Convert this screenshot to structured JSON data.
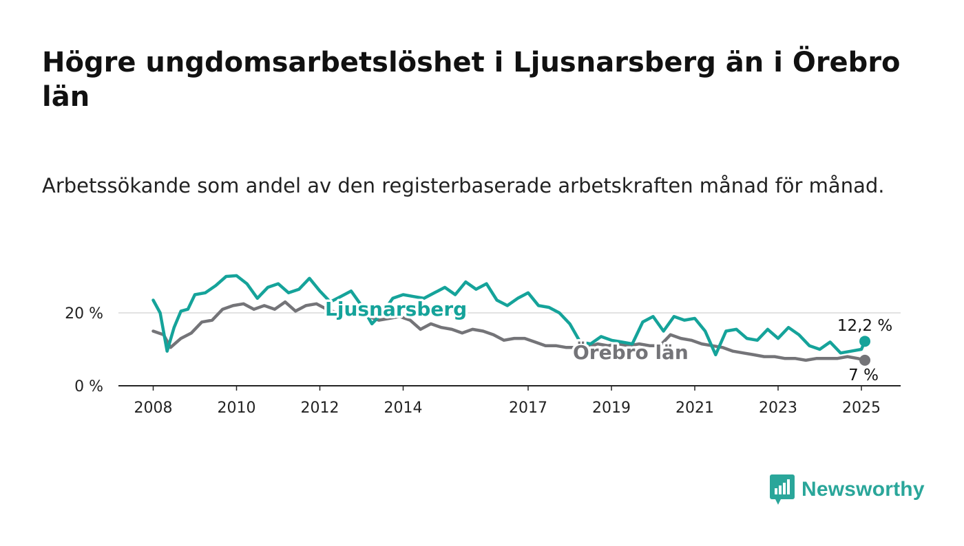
{
  "title": "Högre ungdomsarbetslöshet i Ljusnarsberg än i Örebro län",
  "subtitle": "Arbetssökande som andel av den registerbaserade arbetskraften månad för månad.",
  "brand": {
    "name": "Newsworthy",
    "icon": "newsworthy-logo-icon"
  },
  "colors": {
    "ljusnarsberg": "#15a39a",
    "orebro": "#747478",
    "grid": "#d8d8d8",
    "axis": "#222222"
  },
  "chart_data": {
    "type": "line",
    "title": "Högre ungdomsarbetslöshet i Ljusnarsberg än i Örebro län",
    "subtitle": "Arbetssökande som andel av den registerbaserade arbetskraften månad för månad.",
    "xlabel": "",
    "ylabel": "",
    "x_ticks": [
      "2008",
      "2010",
      "2012",
      "2014",
      "2017",
      "2019",
      "2021",
      "2023",
      "2025"
    ],
    "y_ticks": [
      "0 %",
      "20 %"
    ],
    "ylim": [
      0,
      32
    ],
    "grid": "horizontal",
    "series": [
      {
        "name": "Ljusnarsberg",
        "color": "#15a39a",
        "end_label": "12,2 %",
        "points": [
          [
            "2008-01",
            23.5
          ],
          [
            "2008-03",
            20.0
          ],
          [
            "2008-05",
            9.5
          ],
          [
            "2008-07",
            16.0
          ],
          [
            "2008-09",
            20.5
          ],
          [
            "2008-11",
            21.0
          ],
          [
            "2009-01",
            25.0
          ],
          [
            "2009-04",
            25.5
          ],
          [
            "2009-07",
            27.5
          ],
          [
            "2009-10",
            30.0
          ],
          [
            "2010-01",
            30.2
          ],
          [
            "2010-04",
            28.0
          ],
          [
            "2010-07",
            24.0
          ],
          [
            "2010-10",
            27.0
          ],
          [
            "2011-01",
            28.0
          ],
          [
            "2011-04",
            25.5
          ],
          [
            "2011-07",
            26.5
          ],
          [
            "2011-10",
            29.5
          ],
          [
            "2012-01",
            26.0
          ],
          [
            "2012-04",
            23.0
          ],
          [
            "2012-07",
            24.5
          ],
          [
            "2012-10",
            26.0
          ],
          [
            "2013-01",
            22.0
          ],
          [
            "2013-04",
            17.0
          ],
          [
            "2013-07",
            20.0
          ],
          [
            "2013-10",
            24.0
          ],
          [
            "2014-01",
            25.0
          ],
          [
            "2014-04",
            24.5
          ],
          [
            "2014-07",
            24.0
          ],
          [
            "2014-10",
            25.5
          ],
          [
            "2015-01",
            27.0
          ],
          [
            "2015-04",
            25.0
          ],
          [
            "2015-07",
            28.5
          ],
          [
            "2015-10",
            26.5
          ],
          [
            "2016-01",
            28.0
          ],
          [
            "2016-04",
            23.5
          ],
          [
            "2016-07",
            22.0
          ],
          [
            "2016-10",
            24.0
          ],
          [
            "2017-01",
            25.5
          ],
          [
            "2017-04",
            22.0
          ],
          [
            "2017-07",
            21.5
          ],
          [
            "2017-10",
            20.0
          ],
          [
            "2018-01",
            17.0
          ],
          [
            "2018-04",
            12.0
          ],
          [
            "2018-07",
            11.5
          ],
          [
            "2018-10",
            13.5
          ],
          [
            "2019-01",
            12.5
          ],
          [
            "2019-04",
            12.0
          ],
          [
            "2019-07",
            11.5
          ],
          [
            "2019-10",
            17.5
          ],
          [
            "2020-01",
            19.0
          ],
          [
            "2020-04",
            15.0
          ],
          [
            "2020-07",
            19.0
          ],
          [
            "2020-10",
            18.0
          ],
          [
            "2021-01",
            18.5
          ],
          [
            "2021-04",
            15.0
          ],
          [
            "2021-07",
            8.5
          ],
          [
            "2021-10",
            15.0
          ],
          [
            "2022-01",
            15.5
          ],
          [
            "2022-04",
            13.0
          ],
          [
            "2022-07",
            12.5
          ],
          [
            "2022-10",
            15.5
          ],
          [
            "2023-01",
            13.0
          ],
          [
            "2023-04",
            16.0
          ],
          [
            "2023-07",
            14.0
          ],
          [
            "2023-10",
            11.0
          ],
          [
            "2024-01",
            10.0
          ],
          [
            "2024-04",
            12.0
          ],
          [
            "2024-07",
            9.0
          ],
          [
            "2024-10",
            9.5
          ],
          [
            "2025-01",
            10.0
          ],
          [
            "2025-02",
            12.2
          ]
        ]
      },
      {
        "name": "Örebro län",
        "color": "#747478",
        "end_label": "7 %",
        "points": [
          [
            "2008-01",
            15.0
          ],
          [
            "2008-04",
            14.0
          ],
          [
            "2008-06",
            10.5
          ],
          [
            "2008-09",
            13.0
          ],
          [
            "2008-12",
            14.5
          ],
          [
            "2009-03",
            17.5
          ],
          [
            "2009-06",
            18.0
          ],
          [
            "2009-09",
            21.0
          ],
          [
            "2009-12",
            22.0
          ],
          [
            "2010-03",
            22.5
          ],
          [
            "2010-06",
            21.0
          ],
          [
            "2010-09",
            22.0
          ],
          [
            "2010-12",
            21.0
          ],
          [
            "2011-03",
            23.0
          ],
          [
            "2011-06",
            20.5
          ],
          [
            "2011-09",
            22.0
          ],
          [
            "2011-12",
            22.5
          ],
          [
            "2012-03",
            21.0
          ],
          [
            "2012-06",
            20.0
          ],
          [
            "2012-09",
            19.5
          ],
          [
            "2012-12",
            20.5
          ],
          [
            "2013-03",
            19.0
          ],
          [
            "2013-06",
            18.0
          ],
          [
            "2013-09",
            18.5
          ],
          [
            "2013-12",
            19.0
          ],
          [
            "2014-03",
            18.0
          ],
          [
            "2014-06",
            15.5
          ],
          [
            "2014-09",
            17.0
          ],
          [
            "2014-12",
            16.0
          ],
          [
            "2015-03",
            15.5
          ],
          [
            "2015-06",
            14.5
          ],
          [
            "2015-09",
            15.5
          ],
          [
            "2015-12",
            15.0
          ],
          [
            "2016-03",
            14.0
          ],
          [
            "2016-06",
            12.5
          ],
          [
            "2016-09",
            13.0
          ],
          [
            "2016-12",
            13.0
          ],
          [
            "2017-03",
            12.0
          ],
          [
            "2017-06",
            11.0
          ],
          [
            "2017-09",
            11.0
          ],
          [
            "2017-12",
            10.5
          ],
          [
            "2018-03",
            10.5
          ],
          [
            "2018-06",
            10.5
          ],
          [
            "2018-09",
            11.5
          ],
          [
            "2018-12",
            11.0
          ],
          [
            "2019-03",
            11.5
          ],
          [
            "2019-06",
            11.0
          ],
          [
            "2019-09",
            11.5
          ],
          [
            "2019-12",
            11.0
          ],
          [
            "2020-03",
            11.0
          ],
          [
            "2020-06",
            14.0
          ],
          [
            "2020-09",
            13.0
          ],
          [
            "2020-12",
            12.5
          ],
          [
            "2021-03",
            11.5
          ],
          [
            "2021-06",
            11.0
          ],
          [
            "2021-09",
            10.5
          ],
          [
            "2021-12",
            9.5
          ],
          [
            "2022-03",
            9.0
          ],
          [
            "2022-06",
            8.5
          ],
          [
            "2022-09",
            8.0
          ],
          [
            "2022-12",
            8.0
          ],
          [
            "2023-03",
            7.5
          ],
          [
            "2023-06",
            7.5
          ],
          [
            "2023-09",
            7.0
          ],
          [
            "2023-12",
            7.5
          ],
          [
            "2024-03",
            7.5
          ],
          [
            "2024-06",
            7.5
          ],
          [
            "2024-09",
            8.0
          ],
          [
            "2024-12",
            7.5
          ],
          [
            "2025-02",
            7.0
          ]
        ]
      }
    ]
  }
}
